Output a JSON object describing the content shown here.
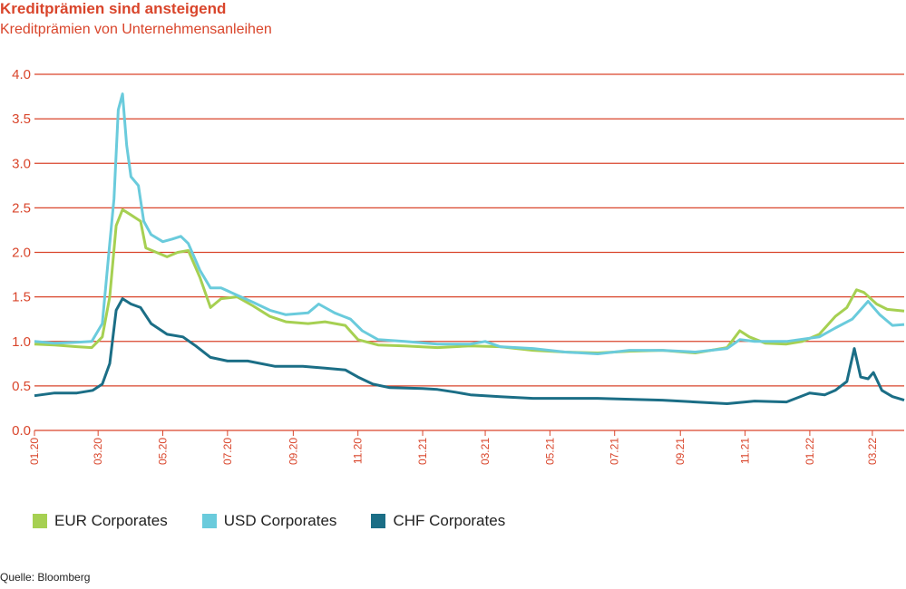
{
  "colors": {
    "accent": "#d9452b",
    "eur": "#a6d052",
    "usd": "#6acbdc",
    "chf": "#1b6e86"
  },
  "chart_data": {
    "type": "line",
    "title": "Kreditprämien sind ansteigend",
    "subtitle": "Kreditprämien von Unternehmensanleihen",
    "source": "Quelle: Bloomberg",
    "ylim": [
      0,
      4.0
    ],
    "yticks": [
      "0.0",
      "0.5",
      "1.0",
      "1.5",
      "2.0",
      "2.5",
      "3.0",
      "3.5",
      "4.0"
    ],
    "xlim": [
      "2020-01-01",
      "2022-03-31"
    ],
    "xticks": [
      "01.20",
      "03.20",
      "05.20",
      "07.20",
      "09.20",
      "11.20",
      "01.21",
      "03.21",
      "05.21",
      "07.21",
      "09.21",
      "11.21",
      "01.22",
      "03.22"
    ],
    "grid": "horizontal",
    "legend_position": "bottom-left",
    "series": [
      {
        "name": "EUR Corporates",
        "points": [
          [
            "2020-01-01",
            0.97
          ],
          [
            "2020-01-20",
            0.96
          ],
          [
            "2020-02-10",
            0.94
          ],
          [
            "2020-02-24",
            0.93
          ],
          [
            "2020-03-05",
            1.05
          ],
          [
            "2020-03-12",
            1.5
          ],
          [
            "2020-03-18",
            2.3
          ],
          [
            "2020-03-24",
            2.48
          ],
          [
            "2020-04-01",
            2.42
          ],
          [
            "2020-04-10",
            2.35
          ],
          [
            "2020-04-15",
            2.05
          ],
          [
            "2020-04-25",
            2.0
          ],
          [
            "2020-05-05",
            1.95
          ],
          [
            "2020-05-15",
            2.0
          ],
          [
            "2020-05-25",
            2.02
          ],
          [
            "2020-06-05",
            1.72
          ],
          [
            "2020-06-15",
            1.38
          ],
          [
            "2020-06-25",
            1.48
          ],
          [
            "2020-07-10",
            1.5
          ],
          [
            "2020-07-25",
            1.4
          ],
          [
            "2020-08-10",
            1.28
          ],
          [
            "2020-08-25",
            1.22
          ],
          [
            "2020-09-15",
            1.2
          ],
          [
            "2020-10-01",
            1.22
          ],
          [
            "2020-10-20",
            1.18
          ],
          [
            "2020-11-01",
            1.02
          ],
          [
            "2020-11-20",
            0.96
          ],
          [
            "2020-12-15",
            0.95
          ],
          [
            "2021-01-15",
            0.93
          ],
          [
            "2021-02-15",
            0.95
          ],
          [
            "2021-03-15",
            0.94
          ],
          [
            "2021-04-15",
            0.9
          ],
          [
            "2021-05-15",
            0.88
          ],
          [
            "2021-06-15",
            0.87
          ],
          [
            "2021-07-15",
            0.89
          ],
          [
            "2021-08-15",
            0.9
          ],
          [
            "2021-09-15",
            0.87
          ],
          [
            "2021-10-15",
            0.93
          ],
          [
            "2021-10-27",
            1.12
          ],
          [
            "2021-11-05",
            1.05
          ],
          [
            "2021-11-20",
            0.98
          ],
          [
            "2021-12-10",
            0.97
          ],
          [
            "2021-12-25",
            1.0
          ],
          [
            "2022-01-10",
            1.08
          ],
          [
            "2022-01-25",
            1.28
          ],
          [
            "2022-02-05",
            1.38
          ],
          [
            "2022-02-14",
            1.58
          ],
          [
            "2022-02-21",
            1.55
          ],
          [
            "2022-03-05",
            1.42
          ],
          [
            "2022-03-15",
            1.36
          ],
          [
            "2022-03-31",
            1.34
          ]
        ]
      },
      {
        "name": "USD Corporates",
        "points": [
          [
            "2020-01-01",
            1.0
          ],
          [
            "2020-01-20",
            0.98
          ],
          [
            "2020-02-10",
            0.99
          ],
          [
            "2020-02-24",
            1.0
          ],
          [
            "2020-03-05",
            1.2
          ],
          [
            "2020-03-12",
            2.1
          ],
          [
            "2020-03-16",
            2.6
          ],
          [
            "2020-03-20",
            3.6
          ],
          [
            "2020-03-24",
            3.78
          ],
          [
            "2020-03-28",
            3.2
          ],
          [
            "2020-04-01",
            2.85
          ],
          [
            "2020-04-08",
            2.75
          ],
          [
            "2020-04-13",
            2.35
          ],
          [
            "2020-04-20",
            2.2
          ],
          [
            "2020-05-01",
            2.12
          ],
          [
            "2020-05-10",
            2.15
          ],
          [
            "2020-05-18",
            2.18
          ],
          [
            "2020-05-25",
            2.1
          ],
          [
            "2020-06-05",
            1.8
          ],
          [
            "2020-06-15",
            1.6
          ],
          [
            "2020-06-25",
            1.6
          ],
          [
            "2020-07-10",
            1.52
          ],
          [
            "2020-07-25",
            1.44
          ],
          [
            "2020-08-10",
            1.35
          ],
          [
            "2020-08-25",
            1.3
          ],
          [
            "2020-09-15",
            1.32
          ],
          [
            "2020-09-25",
            1.42
          ],
          [
            "2020-10-10",
            1.32
          ],
          [
            "2020-10-25",
            1.25
          ],
          [
            "2020-11-05",
            1.12
          ],
          [
            "2020-11-20",
            1.02
          ],
          [
            "2020-12-15",
            1.0
          ],
          [
            "2021-01-15",
            0.97
          ],
          [
            "2021-02-15",
            0.97
          ],
          [
            "2021-03-01",
            1.0
          ],
          [
            "2021-03-15",
            0.94
          ],
          [
            "2021-04-15",
            0.92
          ],
          [
            "2021-05-15",
            0.88
          ],
          [
            "2021-06-15",
            0.86
          ],
          [
            "2021-07-15",
            0.9
          ],
          [
            "2021-08-15",
            0.9
          ],
          [
            "2021-09-15",
            0.88
          ],
          [
            "2021-10-15",
            0.92
          ],
          [
            "2021-10-27",
            1.02
          ],
          [
            "2021-11-10",
            1.0
          ],
          [
            "2021-12-10",
            1.0
          ],
          [
            "2022-01-10",
            1.05
          ],
          [
            "2022-01-25",
            1.15
          ],
          [
            "2022-02-10",
            1.25
          ],
          [
            "2022-02-25",
            1.45
          ],
          [
            "2022-03-08",
            1.3
          ],
          [
            "2022-03-20",
            1.18
          ],
          [
            "2022-03-31",
            1.19
          ]
        ]
      },
      {
        "name": "CHF Corporates",
        "points": [
          [
            "2020-01-01",
            0.39
          ],
          [
            "2020-01-20",
            0.42
          ],
          [
            "2020-02-10",
            0.42
          ],
          [
            "2020-02-25",
            0.45
          ],
          [
            "2020-03-05",
            0.52
          ],
          [
            "2020-03-12",
            0.75
          ],
          [
            "2020-03-18",
            1.35
          ],
          [
            "2020-03-24",
            1.48
          ],
          [
            "2020-04-01",
            1.42
          ],
          [
            "2020-04-10",
            1.38
          ],
          [
            "2020-04-20",
            1.2
          ],
          [
            "2020-05-05",
            1.08
          ],
          [
            "2020-05-20",
            1.05
          ],
          [
            "2020-06-01",
            0.95
          ],
          [
            "2020-06-15",
            0.82
          ],
          [
            "2020-07-01",
            0.78
          ],
          [
            "2020-07-20",
            0.78
          ],
          [
            "2020-08-15",
            0.72
          ],
          [
            "2020-09-10",
            0.72
          ],
          [
            "2020-10-01",
            0.7
          ],
          [
            "2020-10-20",
            0.68
          ],
          [
            "2020-11-01",
            0.6
          ],
          [
            "2020-11-15",
            0.52
          ],
          [
            "2020-12-01",
            0.48
          ],
          [
            "2021-01-01",
            0.47
          ],
          [
            "2021-01-15",
            0.46
          ],
          [
            "2021-02-01",
            0.43
          ],
          [
            "2021-02-15",
            0.4
          ],
          [
            "2021-03-15",
            0.38
          ],
          [
            "2021-04-15",
            0.36
          ],
          [
            "2021-05-15",
            0.36
          ],
          [
            "2021-06-15",
            0.36
          ],
          [
            "2021-07-15",
            0.35
          ],
          [
            "2021-08-15",
            0.34
          ],
          [
            "2021-09-15",
            0.32
          ],
          [
            "2021-10-15",
            0.3
          ],
          [
            "2021-11-10",
            0.33
          ],
          [
            "2021-12-10",
            0.32
          ],
          [
            "2022-01-01",
            0.42
          ],
          [
            "2022-01-15",
            0.4
          ],
          [
            "2022-01-25",
            0.45
          ],
          [
            "2022-02-05",
            0.55
          ],
          [
            "2022-02-12",
            0.92
          ],
          [
            "2022-02-18",
            0.6
          ],
          [
            "2022-02-25",
            0.58
          ],
          [
            "2022-03-02",
            0.65
          ],
          [
            "2022-03-10",
            0.45
          ],
          [
            "2022-03-20",
            0.38
          ],
          [
            "2022-03-31",
            0.34
          ]
        ]
      }
    ]
  }
}
